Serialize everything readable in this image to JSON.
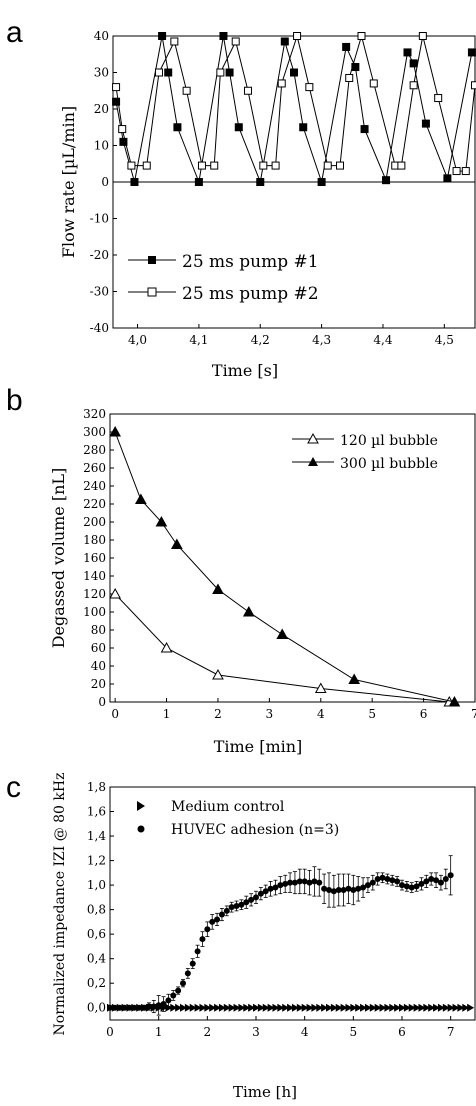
{
  "chart_data": [
    {
      "panel_label": "a",
      "type": "line",
      "xlabel": "Time [s]",
      "ylabel": "Flow rate [µL/min]",
      "xlim": [
        3.96,
        4.55
      ],
      "ylim": [
        -40,
        40
      ],
      "x_ticks": [
        4.0,
        4.1,
        4.2,
        4.3,
        4.4,
        4.5
      ],
      "x_tick_labels": [
        "4,0",
        "4,1",
        "4,2",
        "4,3",
        "4,4",
        "4,5"
      ],
      "y_ticks": [
        -40,
        -30,
        -20,
        -10,
        0,
        10,
        20,
        30,
        40
      ],
      "y_tick_labels": [
        "-40",
        "-30",
        "-20",
        "-10",
        "0",
        "10",
        "20",
        "30",
        "40"
      ],
      "legend_position": "lower-left",
      "series": [
        {
          "name": "25 ms pump #1",
          "marker": "filled-square",
          "points": [
            [
              3.965,
              22
            ],
            [
              3.977,
              11
            ],
            [
              3.995,
              0
            ],
            [
              4.04,
              40
            ],
            [
              4.05,
              30
            ],
            [
              4.065,
              15
            ],
            [
              4.1,
              0
            ],
            [
              4.14,
              40
            ],
            [
              4.15,
              30
            ],
            [
              4.165,
              15
            ],
            [
              4.2,
              0
            ],
            [
              4.24,
              38.5
            ],
            [
              4.255,
              30
            ],
            [
              4.27,
              15
            ],
            [
              4.3,
              0
            ],
            [
              4.34,
              37
            ],
            [
              4.355,
              31.5
            ],
            [
              4.37,
              14.5
            ],
            [
              4.405,
              0.5
            ],
            [
              4.44,
              35.5
            ],
            [
              4.45,
              32.5
            ],
            [
              4.47,
              16
            ],
            [
              4.505,
              1
            ],
            [
              4.545,
              35.5
            ]
          ]
        },
        {
          "name": "25 ms pump #2",
          "marker": "open-square",
          "points": [
            [
              3.965,
              26
            ],
            [
              3.975,
              14.5
            ],
            [
              3.99,
              4.5
            ],
            [
              4.015,
              4.5
            ],
            [
              4.035,
              30
            ],
            [
              4.06,
              38.5
            ],
            [
              4.08,
              25
            ],
            [
              4.105,
              4.5
            ],
            [
              4.125,
              4.5
            ],
            [
              4.135,
              30
            ],
            [
              4.16,
              38.5
            ],
            [
              4.18,
              25
            ],
            [
              4.205,
              4.5
            ],
            [
              4.225,
              4.5
            ],
            [
              4.235,
              27
            ],
            [
              4.26,
              40
            ],
            [
              4.28,
              26
            ],
            [
              4.31,
              4.5
            ],
            [
              4.33,
              4.5
            ],
            [
              4.345,
              28.5
            ],
            [
              4.365,
              40
            ],
            [
              4.385,
              27
            ],
            [
              4.42,
              4.5
            ],
            [
              4.43,
              4.5
            ],
            [
              4.45,
              26.5
            ],
            [
              4.465,
              40
            ],
            [
              4.49,
              23
            ],
            [
              4.52,
              3
            ],
            [
              4.535,
              3
            ],
            [
              4.55,
              26.5
            ]
          ]
        }
      ]
    },
    {
      "panel_label": "b",
      "type": "line",
      "xlabel": "Time [min]",
      "ylabel": "Degassed volume [nL]",
      "xlim": [
        -0.1,
        7
      ],
      "ylim": [
        0,
        320
      ],
      "x_ticks": [
        0,
        1,
        2,
        3,
        4,
        5,
        6,
        7
      ],
      "x_tick_labels": [
        "0",
        "1",
        "2",
        "3",
        "4",
        "5",
        "6",
        "7"
      ],
      "y_ticks": [
        0,
        20,
        40,
        60,
        80,
        100,
        120,
        140,
        160,
        180,
        200,
        220,
        240,
        260,
        280,
        300,
        320
      ],
      "y_tick_labels": [
        "0",
        "20",
        "40",
        "60",
        "80",
        "100",
        "120",
        "140",
        "160",
        "180",
        "200",
        "220",
        "240",
        "260",
        "280",
        "300",
        "320"
      ],
      "legend_position": "top-right",
      "series": [
        {
          "name": "120 µl bubble",
          "marker": "open-triangle",
          "points": [
            [
              0,
              120
            ],
            [
              1,
              60
            ],
            [
              2,
              30
            ],
            [
              4,
              15
            ],
            [
              6.5,
              0
            ]
          ]
        },
        {
          "name": "300 µl bubble",
          "marker": "filled-triangle",
          "points": [
            [
              0,
              300
            ],
            [
              0.5,
              225
            ],
            [
              0.9,
              200
            ],
            [
              1.2,
              175
            ],
            [
              2,
              125
            ],
            [
              2.6,
              100
            ],
            [
              3.25,
              75
            ],
            [
              4.65,
              25
            ],
            [
              6.6,
              0
            ]
          ]
        }
      ]
    },
    {
      "panel_label": "c",
      "type": "scatter",
      "xlabel": "Time [h]",
      "ylabel": "Normalized impedance IZI @ 80 kHz",
      "xlim": [
        0,
        7.5
      ],
      "ylim": [
        -0.1,
        1.8
      ],
      "x_ticks": [
        0,
        1,
        2,
        3,
        4,
        5,
        6,
        7
      ],
      "x_tick_labels": [
        "0",
        "1",
        "2",
        "3",
        "4",
        "5",
        "6",
        "7"
      ],
      "y_ticks": [
        0.0,
        0.2,
        0.4,
        0.6,
        0.8,
        1.0,
        1.2,
        1.4,
        1.6,
        1.8
      ],
      "y_tick_labels": [
        "0,0",
        "0,2",
        "0,4",
        "0,6",
        "0,8",
        "1,0",
        "1,2",
        "1,4",
        "1,6",
        "1,8"
      ],
      "legend_position": "top-left",
      "series": [
        {
          "name": "Medium control",
          "marker": "right-triangle",
          "x_start": 0,
          "x_end": 7.4,
          "x_step": 0.1,
          "y": 0.0
        },
        {
          "name": "HUVEC adhesion (n=3)",
          "marker": "filled-circle",
          "error_bars": true,
          "points": [
            [
              0,
              0.0,
              0.01
            ],
            [
              0.1,
              0.0,
              0.01
            ],
            [
              0.2,
              0.0,
              0.01
            ],
            [
              0.3,
              0.0,
              0.01
            ],
            [
              0.4,
              0.0,
              0.01
            ],
            [
              0.5,
              0.0,
              0.01
            ],
            [
              0.6,
              0.0,
              0.015
            ],
            [
              0.7,
              0.0,
              0.02
            ],
            [
              0.8,
              0.01,
              0.03
            ],
            [
              0.9,
              0.01,
              0.05
            ],
            [
              1.0,
              0.02,
              0.08
            ],
            [
              1.1,
              0.03,
              0.06
            ],
            [
              1.2,
              0.06,
              0.05
            ],
            [
              1.3,
              0.1,
              0.04
            ],
            [
              1.4,
              0.14,
              0.03
            ],
            [
              1.5,
              0.2,
              0.03
            ],
            [
              1.6,
              0.28,
              0.04
            ],
            [
              1.7,
              0.36,
              0.04
            ],
            [
              1.8,
              0.46,
              0.05
            ],
            [
              1.9,
              0.56,
              0.06
            ],
            [
              2.0,
              0.64,
              0.06
            ],
            [
              2.1,
              0.7,
              0.06
            ],
            [
              2.2,
              0.72,
              0.05
            ],
            [
              2.3,
              0.76,
              0.05
            ],
            [
              2.4,
              0.79,
              0.04
            ],
            [
              2.5,
              0.82,
              0.04
            ],
            [
              2.6,
              0.83,
              0.04
            ],
            [
              2.7,
              0.84,
              0.04
            ],
            [
              2.8,
              0.86,
              0.05
            ],
            [
              2.9,
              0.88,
              0.05
            ],
            [
              3.0,
              0.9,
              0.05
            ],
            [
              3.1,
              0.93,
              0.05
            ],
            [
              3.2,
              0.95,
              0.05
            ],
            [
              3.3,
              0.97,
              0.06
            ],
            [
              3.4,
              0.98,
              0.06
            ],
            [
              3.5,
              1.0,
              0.07
            ],
            [
              3.6,
              1.01,
              0.07
            ],
            [
              3.7,
              1.02,
              0.08
            ],
            [
              3.8,
              1.02,
              0.09
            ],
            [
              3.9,
              1.03,
              0.1
            ],
            [
              4.0,
              1.03,
              0.1
            ],
            [
              4.1,
              1.02,
              0.1
            ],
            [
              4.2,
              1.03,
              0.12
            ],
            [
              4.3,
              1.02,
              0.11
            ],
            [
              4.4,
              0.97,
              0.12
            ],
            [
              4.5,
              0.96,
              0.14
            ],
            [
              4.6,
              0.95,
              0.13
            ],
            [
              4.7,
              0.96,
              0.13
            ],
            [
              4.8,
              0.96,
              0.13
            ],
            [
              4.9,
              0.97,
              0.12
            ],
            [
              5.0,
              0.96,
              0.12
            ],
            [
              5.1,
              0.97,
              0.1
            ],
            [
              5.2,
              0.98,
              0.08
            ],
            [
              5.3,
              1.0,
              0.06
            ],
            [
              5.4,
              1.02,
              0.06
            ],
            [
              5.5,
              1.05,
              0.05
            ],
            [
              5.6,
              1.06,
              0.04
            ],
            [
              5.7,
              1.05,
              0.04
            ],
            [
              5.8,
              1.04,
              0.04
            ],
            [
              5.9,
              1.03,
              0.04
            ],
            [
              6.0,
              1.0,
              0.04
            ],
            [
              6.1,
              0.99,
              0.04
            ],
            [
              6.2,
              0.98,
              0.04
            ],
            [
              6.3,
              0.99,
              0.04
            ],
            [
              6.4,
              1.01,
              0.05
            ],
            [
              6.5,
              1.03,
              0.05
            ],
            [
              6.6,
              1.05,
              0.05
            ],
            [
              6.7,
              1.04,
              0.06
            ],
            [
              6.8,
              1.02,
              0.06
            ],
            [
              6.9,
              1.05,
              0.08
            ],
            [
              7.0,
              1.08,
              0.16
            ]
          ]
        }
      ]
    }
  ]
}
